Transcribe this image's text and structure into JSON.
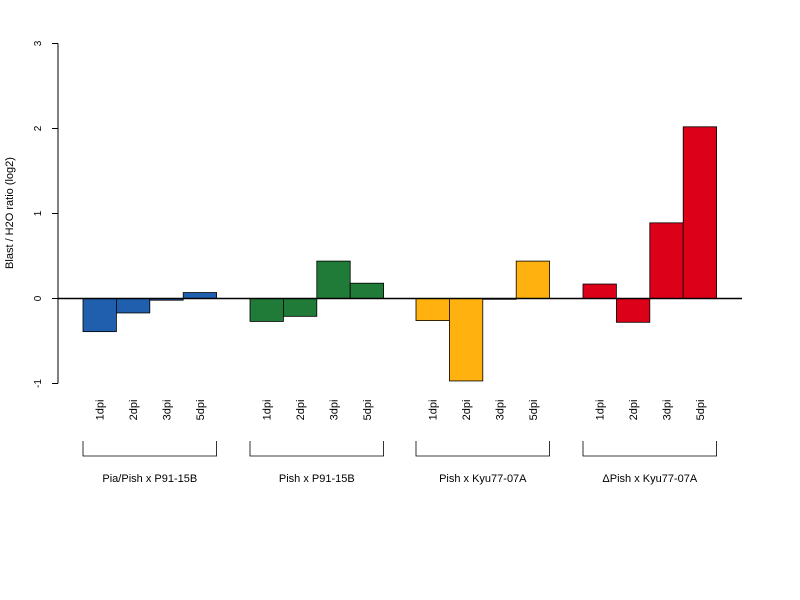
{
  "chart_data": {
    "type": "bar",
    "ylabel": "Blast / H2O ratio (log2)",
    "ylim": [
      -1,
      3
    ],
    "yticks": [
      -1,
      0,
      1,
      2,
      3
    ],
    "grid": false,
    "groups": [
      {
        "name": "Pia/Pish x P91-15B",
        "color": "#1f5fad",
        "categories": [
          "1dpi",
          "2dpi",
          "3dpi",
          "5dpi"
        ],
        "values": [
          -0.39,
          -0.17,
          -0.02,
          0.07
        ]
      },
      {
        "name": "Pish x P91-15B",
        "color": "#207a38",
        "categories": [
          "1dpi",
          "2dpi",
          "3dpi",
          "5dpi"
        ],
        "values": [
          -0.27,
          -0.21,
          0.44,
          0.18
        ]
      },
      {
        "name": "Pish x Kyu77-07A",
        "color": "#ffb20f",
        "categories": [
          "1dpi",
          "2dpi",
          "3dpi",
          "5dpi"
        ],
        "values": [
          -0.26,
          -0.97,
          0.0,
          0.44
        ]
      },
      {
        "name": "ΔPish x Kyu77-07A",
        "color": "#dc0019",
        "categories": [
          "1dpi",
          "2dpi",
          "3dpi",
          "5dpi"
        ],
        "values": [
          0.17,
          -0.28,
          0.89,
          2.02
        ]
      }
    ]
  }
}
